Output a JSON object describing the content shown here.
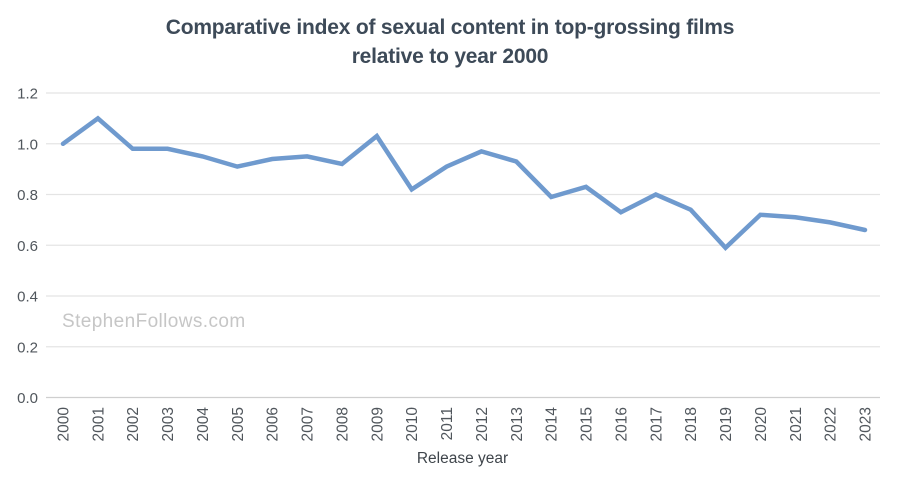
{
  "title": {
    "line1": "Comparative index of sexual content in top-grossing films",
    "line2": "relative to year 2000"
  },
  "watermark": {
    "text": "StephenFollows.com",
    "color": "#c6c6c6"
  },
  "axis": {
    "x_label": "Release year"
  },
  "colors": {
    "line": "#6f9ace",
    "grid": "#e4e4e4",
    "axis_line": "#cfcfcf",
    "tick_text": "#50565c",
    "title_text": "#3d4a58"
  },
  "chart_data": {
    "type": "line",
    "title": "Comparative index of sexual content in top-grossing films relative to year 2000",
    "xlabel": "Release year",
    "ylabel": "",
    "x": [
      "2000",
      "2001",
      "2002",
      "2003",
      "2004",
      "2005",
      "2006",
      "2007",
      "2008",
      "2009",
      "2010",
      "2011",
      "2012",
      "2013",
      "2014",
      "2015",
      "2016",
      "2017",
      "2018",
      "2019",
      "2020",
      "2021",
      "2022",
      "2023"
    ],
    "values": [
      1.0,
      1.1,
      0.98,
      0.98,
      0.95,
      0.91,
      0.94,
      0.95,
      0.92,
      1.03,
      0.82,
      0.91,
      0.97,
      0.93,
      0.79,
      0.83,
      0.73,
      0.8,
      0.74,
      0.59,
      0.72,
      0.71,
      0.69,
      0.66
    ],
    "ylim": [
      0,
      1.2
    ],
    "yticks": [
      0.0,
      0.2,
      0.4,
      0.6,
      0.8,
      1.0,
      1.2
    ],
    "ytick_labels": [
      "0.0",
      "0.2",
      "0.4",
      "0.6",
      "0.8",
      "1.0",
      "1.2"
    ],
    "grid": true,
    "legend": "none",
    "watermark": "StephenFollows.com"
  }
}
